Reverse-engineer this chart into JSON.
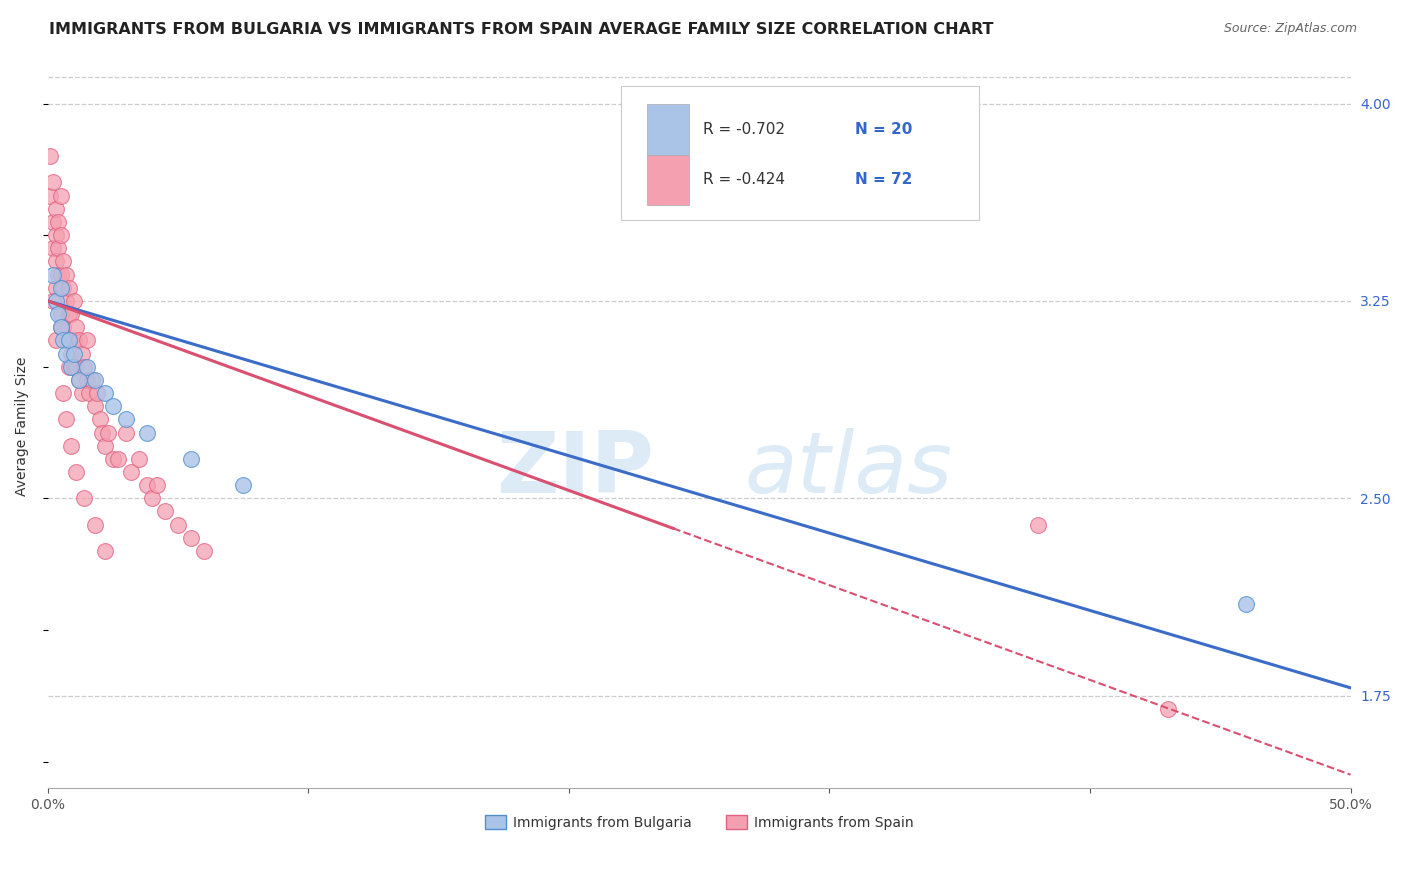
{
  "title": "IMMIGRANTS FROM BULGARIA VS IMMIGRANTS FROM SPAIN AVERAGE FAMILY SIZE CORRELATION CHART",
  "source_text": "Source: ZipAtlas.com",
  "ylabel": "Average Family Size",
  "xlim": [
    0.0,
    0.5
  ],
  "ylim": [
    1.4,
    4.15
  ],
  "xticks": [
    0.0,
    0.1,
    0.2,
    0.3,
    0.4,
    0.5
  ],
  "xticklabels": [
    "0.0%",
    "",
    "",
    "",
    "",
    "50.0%"
  ],
  "yticks_right": [
    4.0,
    3.25,
    2.5,
    1.75
  ],
  "bg_color": "#ffffff",
  "grid_color": "#cccccc",
  "bulgaria_color": "#aac4e8",
  "spain_color": "#f4a0b0",
  "bulgaria_edge_color": "#5090d0",
  "spain_edge_color": "#e06080",
  "bulgaria_line_color": "#3b6cc7",
  "spain_line_color": "#d95070",
  "legend_r1": "R = -0.702",
  "legend_n1": "N = 20",
  "legend_r2": "R = -0.424",
  "legend_n2": "N = 72",
  "legend_label1": "Immigrants from Bulgaria",
  "legend_label2": "Immigrants from Spain",
  "bulgaria_scatter_x": [
    0.002,
    0.003,
    0.004,
    0.005,
    0.005,
    0.006,
    0.007,
    0.008,
    0.009,
    0.01,
    0.012,
    0.015,
    0.018,
    0.022,
    0.025,
    0.03,
    0.038,
    0.055,
    0.075,
    0.46
  ],
  "bulgaria_scatter_y": [
    3.35,
    3.25,
    3.2,
    3.3,
    3.15,
    3.1,
    3.05,
    3.1,
    3.0,
    3.05,
    2.95,
    3.0,
    2.95,
    2.9,
    2.85,
    2.8,
    2.75,
    2.65,
    2.55,
    2.1
  ],
  "spain_scatter_x": [
    0.001,
    0.001,
    0.002,
    0.002,
    0.002,
    0.003,
    0.003,
    0.003,
    0.003,
    0.004,
    0.004,
    0.004,
    0.005,
    0.005,
    0.005,
    0.005,
    0.006,
    0.006,
    0.006,
    0.007,
    0.007,
    0.007,
    0.008,
    0.008,
    0.008,
    0.008,
    0.009,
    0.009,
    0.01,
    0.01,
    0.01,
    0.011,
    0.011,
    0.012,
    0.012,
    0.013,
    0.013,
    0.014,
    0.015,
    0.015,
    0.016,
    0.017,
    0.018,
    0.019,
    0.02,
    0.021,
    0.022,
    0.023,
    0.025,
    0.027,
    0.03,
    0.032,
    0.035,
    0.038,
    0.04,
    0.042,
    0.045,
    0.05,
    0.055,
    0.06,
    0.002,
    0.003,
    0.005,
    0.006,
    0.007,
    0.009,
    0.011,
    0.014,
    0.018,
    0.022,
    0.38,
    0.43
  ],
  "spain_scatter_y": [
    3.8,
    3.65,
    3.7,
    3.55,
    3.45,
    3.6,
    3.5,
    3.4,
    3.3,
    3.55,
    3.45,
    3.35,
    3.65,
    3.5,
    3.35,
    3.2,
    3.4,
    3.3,
    3.15,
    3.35,
    3.25,
    3.1,
    3.3,
    3.2,
    3.1,
    3.0,
    3.2,
    3.05,
    3.25,
    3.1,
    3.0,
    3.15,
    3.0,
    3.1,
    2.95,
    3.05,
    2.9,
    3.0,
    3.1,
    2.95,
    2.9,
    2.95,
    2.85,
    2.9,
    2.8,
    2.75,
    2.7,
    2.75,
    2.65,
    2.65,
    2.75,
    2.6,
    2.65,
    2.55,
    2.5,
    2.55,
    2.45,
    2.4,
    2.35,
    2.3,
    3.25,
    3.1,
    3.15,
    2.9,
    2.8,
    2.7,
    2.6,
    2.5,
    2.4,
    2.3,
    2.4,
    1.7
  ],
  "watermark_zip": "ZIP",
  "watermark_atlas": "atlas",
  "title_fontsize": 11.5,
  "axis_label_fontsize": 10,
  "tick_fontsize": 10,
  "legend_fontsize": 11
}
